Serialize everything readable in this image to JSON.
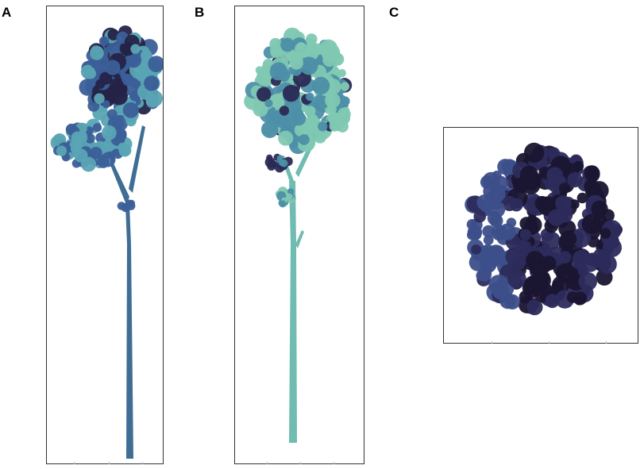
{
  "panels": [
    {
      "label": "A",
      "view": "side",
      "colors": {
        "trunk": "#3f6d94",
        "crown_light": "#5aa4b4",
        "crown_mid": "#3b5f98",
        "crown_dark": "#252348"
      }
    },
    {
      "label": "B",
      "view": "side",
      "colors": {
        "trunk": "#70bcb0",
        "crown_light": "#7fc8b2",
        "crown_mid": "#4d8fa8",
        "crown_dark": "#2a2a55"
      }
    },
    {
      "label": "C",
      "view": "top",
      "colors": {
        "crown_light": "#3d4f8a",
        "crown_mid": "#2c2b5c",
        "crown_dark": "#1a1530"
      }
    }
  ]
}
